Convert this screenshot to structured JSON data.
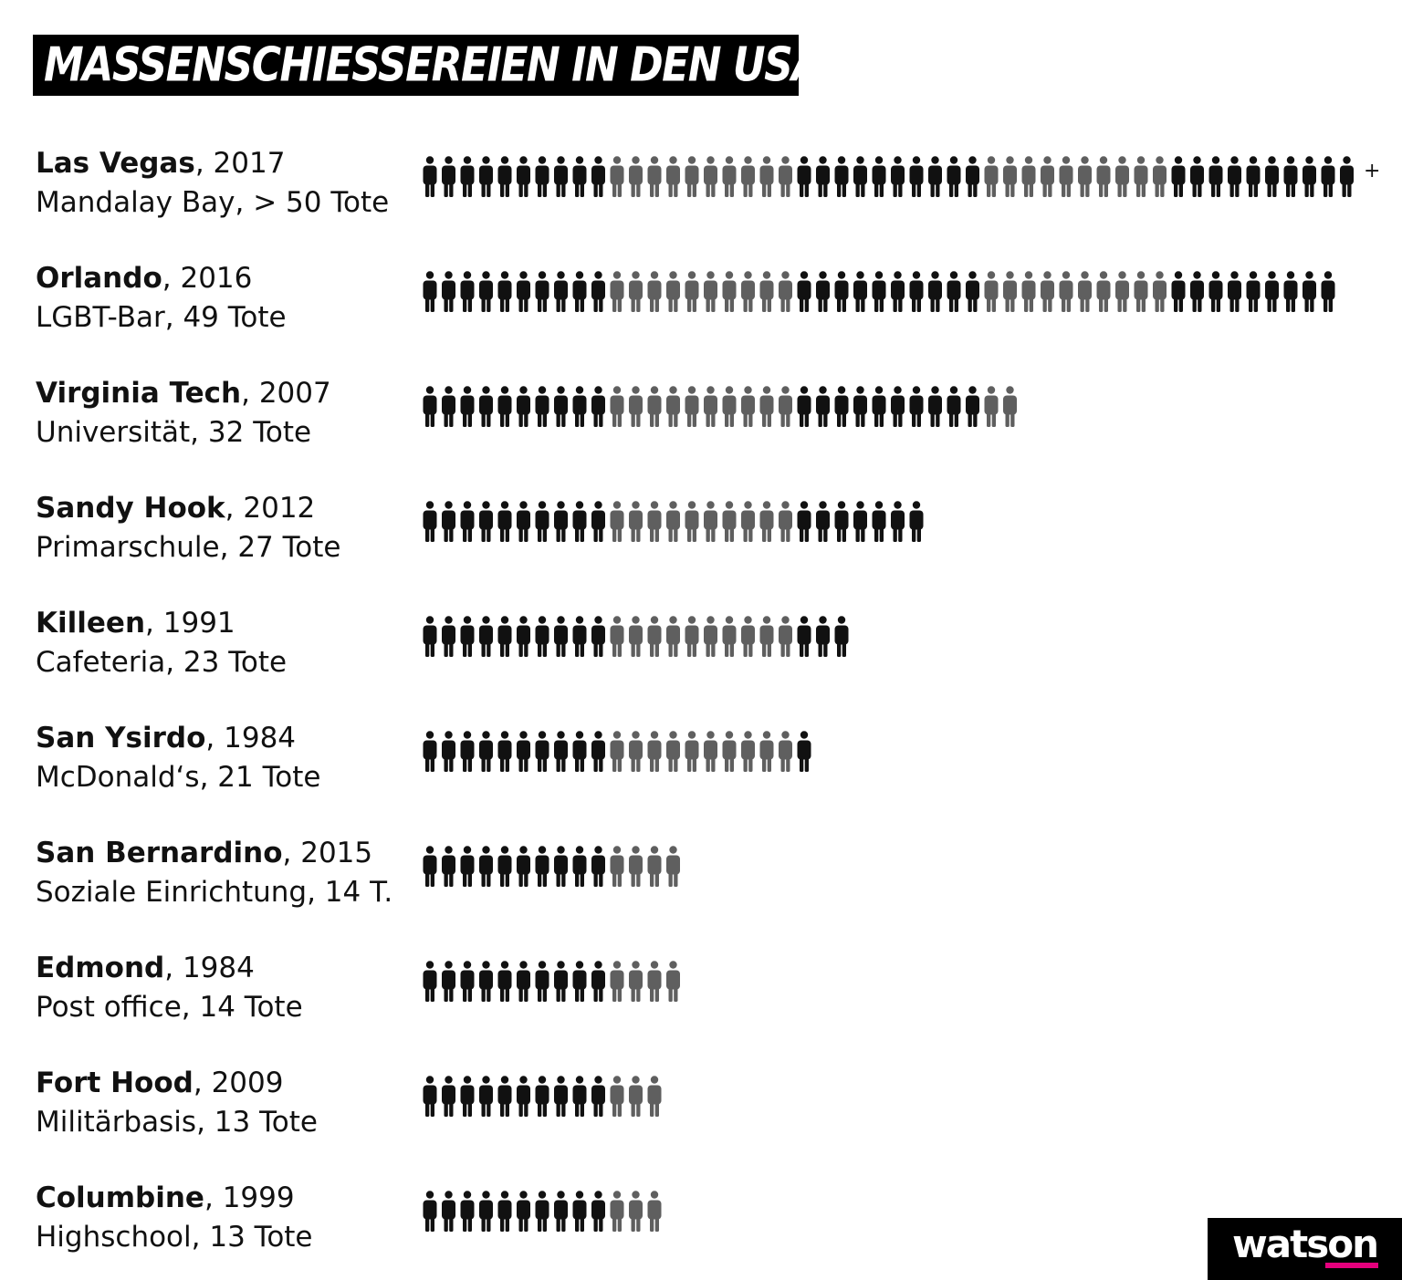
{
  "chart_data": {
    "type": "pictograph",
    "title": "MASSENSCHIESSEREIEN IN DEN USA",
    "unit": "Tote",
    "colors": {
      "dark": "#111111",
      "light": "#5f5f5f",
      "pattern": "alternating groups of 10 icons, starting dark"
    },
    "rows": [
      {
        "name": "Las Vegas",
        "year": "2017",
        "description": "Mandalay Bay, > 50 Tote",
        "value": 50,
        "plus": "+"
      },
      {
        "name": "Orlando",
        "year": "2016",
        "description": "LGBT-Bar, 49 Tote",
        "value": 49
      },
      {
        "name": "Virginia Tech",
        "year": "2007",
        "description": "Universität, 32 Tote",
        "value": 32
      },
      {
        "name": "Sandy Hook",
        "year": "2012",
        "description": "Primarschule, 27 Tote",
        "value": 27
      },
      {
        "name": "Killeen",
        "year": "1991",
        "description": "Cafeteria, 23 Tote",
        "value": 23
      },
      {
        "name": "San Ysirdo",
        "year": "1984",
        "description": "McDonald‘s, 21 Tote",
        "value": 21
      },
      {
        "name": "San Bernardino",
        "year": "2015",
        "description": "Soziale Einrichtung, 14 T.",
        "value": 14
      },
      {
        "name": "Edmond",
        "year": "1984",
        "description": "Post office, 14 Tote",
        "value": 14
      },
      {
        "name": "Fort Hood",
        "year": "2009",
        "description": "Militärbasis, 13 Tote",
        "value": 13
      },
      {
        "name": "Columbine",
        "year": "1999",
        "description": "Highschool, 13 Tote",
        "value": 13
      }
    ]
  },
  "logo": {
    "text": "watson",
    "accent_color": "#e5007d"
  }
}
